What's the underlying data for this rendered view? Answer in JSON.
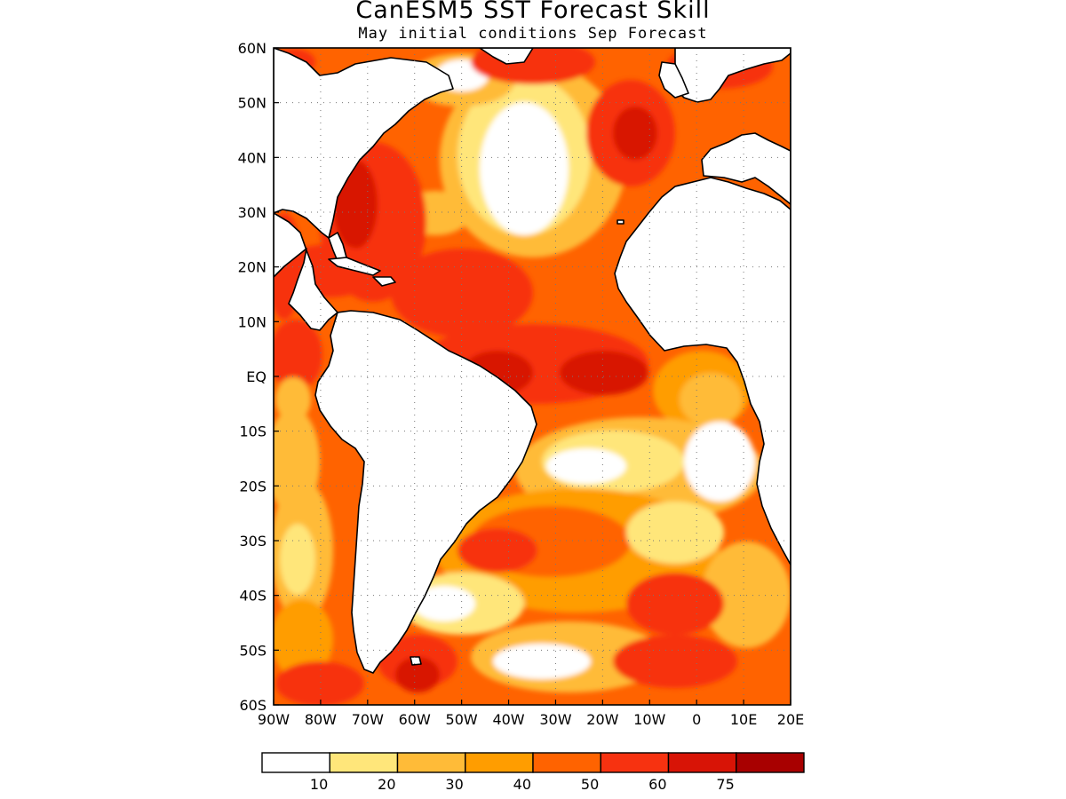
{
  "title": "CanESM5 SST Forecast Skill",
  "subtitle": "May initial conditions  Sep Forecast",
  "map": {
    "lon_range": [
      -90,
      20
    ],
    "lat_range": [
      -60,
      60
    ],
    "lat_labels": [
      "60N",
      "50N",
      "40N",
      "30N",
      "20N",
      "10N",
      "EQ",
      "10S",
      "20S",
      "30S",
      "40S",
      "50S",
      "60S"
    ],
    "lon_labels": [
      "90W",
      "80W",
      "70W",
      "60W",
      "50W",
      "40W",
      "30W",
      "20W",
      "10W",
      "0",
      "10E",
      "20E"
    ],
    "grid": true,
    "grid_style": "dotted",
    "land_color": "#ffffff",
    "coastline_color": "#000000"
  },
  "colorbar": {
    "bins": [
      {
        "color": "#ffffff"
      },
      {
        "color": "#ffe67a"
      },
      {
        "color": "#ffbb38"
      },
      {
        "color": "#ff9d00"
      },
      {
        "color": "#ff6300"
      },
      {
        "color": "#f73210"
      },
      {
        "color": "#d81406"
      },
      {
        "color": "#a80000"
      }
    ],
    "labels": [
      "10",
      "20",
      "30",
      "40",
      "50",
      "60",
      "75"
    ]
  }
}
